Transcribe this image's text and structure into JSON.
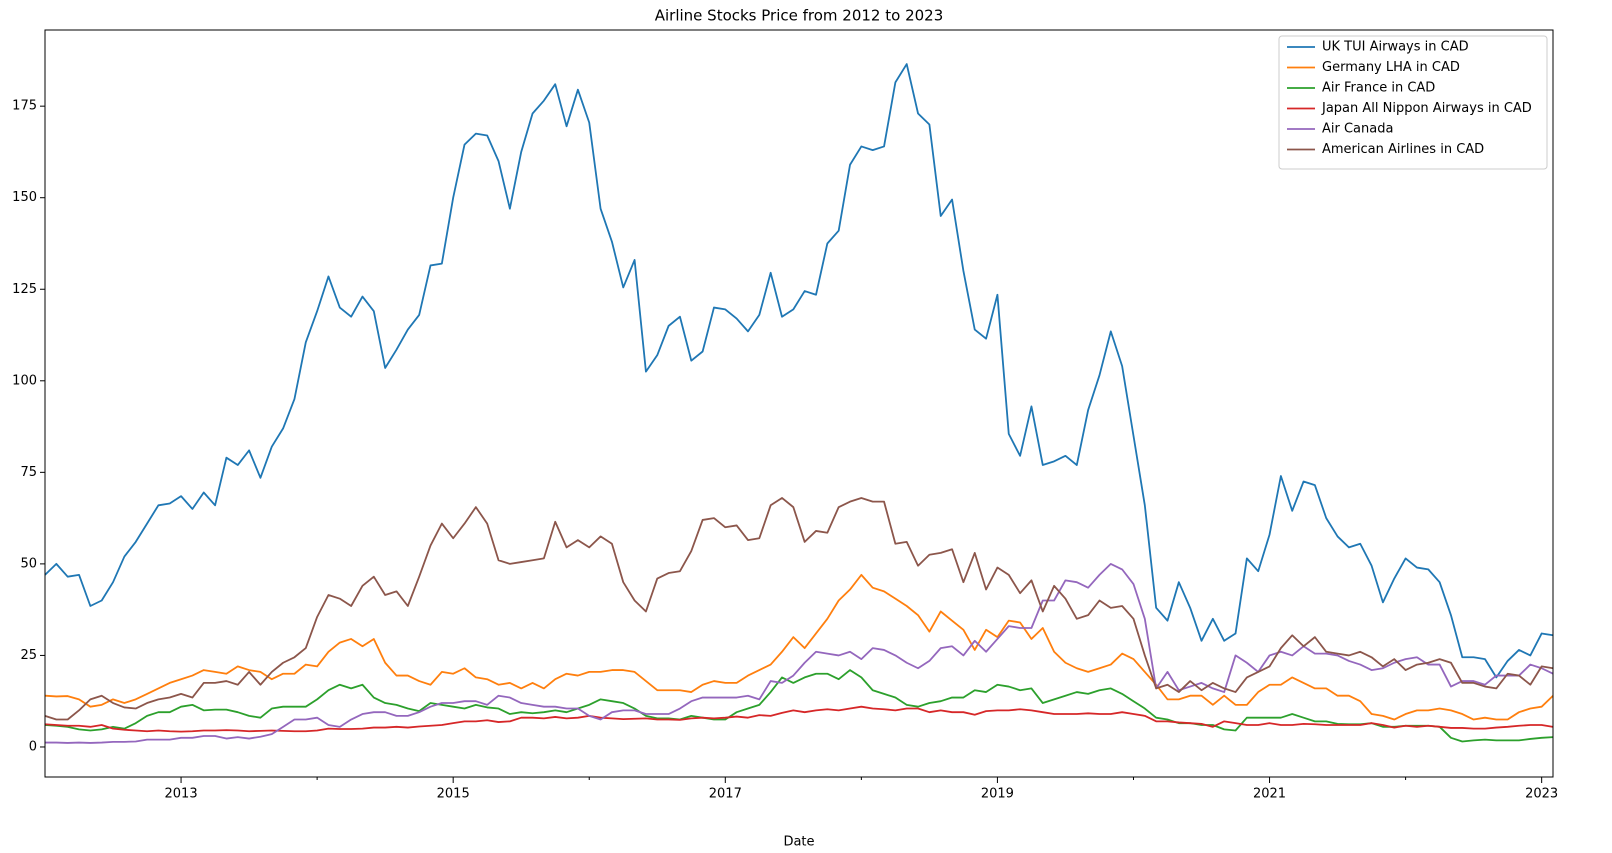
{
  "chart_data": {
    "type": "line",
    "title": "Airline Stocks Price from 2012 to 2023",
    "xlabel": "Date",
    "x": [
      "2012-01",
      "2012-02",
      "2012-03",
      "2012-04",
      "2012-05",
      "2012-06",
      "2012-07",
      "2012-08",
      "2012-09",
      "2012-10",
      "2012-11",
      "2012-12",
      "2013-01",
      "2013-02",
      "2013-03",
      "2013-04",
      "2013-05",
      "2013-06",
      "2013-07",
      "2013-08",
      "2013-09",
      "2013-10",
      "2013-11",
      "2013-12",
      "2014-01",
      "2014-02",
      "2014-03",
      "2014-04",
      "2014-05",
      "2014-06",
      "2014-07",
      "2014-08",
      "2014-09",
      "2014-10",
      "2014-11",
      "2014-12",
      "2015-01",
      "2015-02",
      "2015-03",
      "2015-04",
      "2015-05",
      "2015-06",
      "2015-07",
      "2015-08",
      "2015-09",
      "2015-10",
      "2015-11",
      "2015-12",
      "2016-01",
      "2016-02",
      "2016-03",
      "2016-04",
      "2016-05",
      "2016-06",
      "2016-07",
      "2016-08",
      "2016-09",
      "2016-10",
      "2016-11",
      "2016-12",
      "2017-01",
      "2017-02",
      "2017-03",
      "2017-04",
      "2017-05",
      "2017-06",
      "2017-07",
      "2017-08",
      "2017-09",
      "2017-10",
      "2017-11",
      "2017-12",
      "2018-01",
      "2018-02",
      "2018-03",
      "2018-04",
      "2018-05",
      "2018-06",
      "2018-07",
      "2018-08",
      "2018-09",
      "2018-10",
      "2018-11",
      "2018-12",
      "2019-01",
      "2019-02",
      "2019-03",
      "2019-04",
      "2019-05",
      "2019-06",
      "2019-07",
      "2019-08",
      "2019-09",
      "2019-10",
      "2019-11",
      "2019-12",
      "2020-01",
      "2020-02",
      "2020-03",
      "2020-04",
      "2020-05",
      "2020-06",
      "2020-07",
      "2020-08",
      "2020-09",
      "2020-10",
      "2020-11",
      "2020-12",
      "2021-01",
      "2021-02",
      "2021-03",
      "2021-04",
      "2021-05",
      "2021-06",
      "2021-07",
      "2021-08",
      "2021-09",
      "2021-10",
      "2021-11",
      "2021-12",
      "2022-01",
      "2022-02",
      "2022-03",
      "2022-04",
      "2022-05",
      "2022-06",
      "2022-07",
      "2022-08",
      "2022-09",
      "2022-10",
      "2022-11",
      "2022-12",
      "2023-01",
      "2023-02"
    ],
    "xlim": [
      "2012-01",
      "2023-02"
    ],
    "xticks": [
      2013,
      2015,
      2017,
      2019,
      2021,
      2023
    ],
    "xminorticks": [
      2014,
      2016,
      2018,
      2020,
      2022
    ],
    "ylim": [
      -8.2,
      195.8
    ],
    "yticks": [
      0,
      25,
      50,
      75,
      100,
      125,
      150,
      175
    ],
    "legend": "upper right",
    "series": [
      {
        "name": "UK TUI Airways in CAD",
        "color": "#1f77b4",
        "values": [
          47,
          50,
          46.5,
          47,
          38.5,
          40,
          45,
          52,
          56,
          61,
          66,
          66.5,
          68.5,
          65,
          69.5,
          66,
          79,
          77,
          81,
          73.5,
          82,
          87,
          95,
          110.5,
          119,
          128.5,
          120,
          117.5,
          123,
          119,
          103.5,
          108.5,
          114,
          118,
          131.5,
          132,
          150,
          164.5,
          167.5,
          167,
          160,
          147,
          162.5,
          173,
          176.5,
          181,
          169.5,
          179.5,
          170.5,
          147,
          138,
          125.5,
          133,
          102.5,
          107,
          115,
          117.5,
          105.5,
          108,
          120,
          119.5,
          117,
          113.5,
          118,
          129.5,
          117.5,
          119.5,
          124.5,
          123.5,
          137.5,
          141,
          159,
          164,
          163,
          164,
          181.5,
          186.5,
          173,
          170,
          145,
          149.5,
          130,
          114,
          111.5,
          123.5,
          85.5,
          79.5,
          93,
          77,
          78,
          79.5,
          77,
          92,
          101.5,
          113.5,
          104,
          85,
          66,
          38,
          34.5,
          45,
          38,
          29,
          35,
          29,
          31,
          51.5,
          48,
          58,
          74,
          64.5,
          72.5,
          71.5,
          62.5,
          57.5,
          54.5,
          55.5,
          49.5,
          39.5,
          46,
          51.5,
          49,
          48.5,
          45,
          36,
          24.5,
          24.5,
          24,
          19,
          23.5,
          26.5,
          25,
          31,
          30.5
        ]
      },
      {
        "name": "Germany LHA in CAD",
        "color": "#ff7f0e",
        "values": [
          14,
          13.8,
          13.9,
          13,
          11,
          11.5,
          13,
          12,
          13,
          14.5,
          16,
          17.5,
          18.5,
          19.5,
          21,
          20.5,
          20,
          22,
          21,
          20.5,
          18.5,
          20,
          20,
          22.5,
          22,
          26,
          28.5,
          29.5,
          27.5,
          29.5,
          23,
          19.5,
          19.5,
          18,
          17,
          20.5,
          20,
          21.5,
          19,
          18.5,
          17,
          17.5,
          16,
          17.5,
          16,
          18.5,
          20,
          19.5,
          20.5,
          20.5,
          21,
          21,
          20.5,
          18,
          15.5,
          15.5,
          15.5,
          15,
          17,
          18,
          17.5,
          17.5,
          19.5,
          21,
          22.5,
          26,
          30,
          27,
          31,
          35,
          40,
          43,
          47,
          43.5,
          42.5,
          40.5,
          38.5,
          36,
          31.5,
          37,
          34.5,
          32,
          26.5,
          32,
          30,
          34.5,
          34,
          29.5,
          32.5,
          26,
          23,
          21.5,
          20.5,
          21.5,
          22.5,
          25.5,
          24,
          20.5,
          17,
          13,
          13,
          14,
          14,
          11.5,
          14,
          11.5,
          11.5,
          15,
          17,
          17,
          19,
          17.5,
          16,
          16,
          14,
          14,
          12.5,
          9,
          8.5,
          7.5,
          9,
          10,
          10,
          10.5,
          10,
          9,
          7.5,
          8,
          7.5,
          7.5,
          9.5,
          10.5,
          11,
          14
        ]
      },
      {
        "name": "Air France in CAD",
        "color": "#2ca02c",
        "values": [
          6,
          5.8,
          5.5,
          4.8,
          4.5,
          4.8,
          5.5,
          5,
          6.5,
          8.5,
          9.5,
          9.5,
          11,
          11.5,
          10,
          10.2,
          10.2,
          9.5,
          8.5,
          8,
          10.5,
          11,
          11,
          11,
          13,
          15.5,
          17,
          16,
          17,
          13.5,
          12,
          11.5,
          10.5,
          9.8,
          12,
          11.5,
          11,
          10.5,
          11.5,
          10.8,
          10.5,
          9,
          9.5,
          9.2,
          9.5,
          10,
          9.5,
          10.5,
          11.5,
          13,
          12.5,
          12,
          10.5,
          8.5,
          7.8,
          7.8,
          7.5,
          8.5,
          8,
          7.5,
          7.5,
          9.5,
          10.5,
          11.5,
          15,
          19,
          17.5,
          19,
          20,
          20,
          18.5,
          21,
          19,
          15.5,
          14.5,
          13.5,
          11.5,
          11,
          12,
          12.5,
          13.5,
          13.5,
          15.5,
          15,
          17,
          16.5,
          15.5,
          16,
          12,
          13,
          14,
          15,
          14.5,
          15.5,
          16,
          14.5,
          12.5,
          10.5,
          8,
          7.5,
          6.5,
          6.5,
          6,
          6,
          4.8,
          4.5,
          8,
          8,
          8,
          8,
          9,
          8,
          7,
          7,
          6.3,
          6.2,
          6.2,
          6.5,
          5.5,
          5.5,
          5.8,
          5.8,
          5.8,
          5.5,
          2.5,
          1.5,
          1.8,
          2,
          1.8,
          1.8,
          1.8,
          2.2,
          2.5,
          2.7
        ]
      },
      {
        "name": "Japan All Nippon Airways in CAD",
        "color": "#d62728",
        "values": [
          6.2,
          6,
          5.8,
          5.8,
          5.5,
          6,
          5,
          4.7,
          4.5,
          4.3,
          4.5,
          4.3,
          4.2,
          4.3,
          4.5,
          4.5,
          4.6,
          4.5,
          4.3,
          4.4,
          4.5,
          4.4,
          4.3,
          4.3,
          4.5,
          5,
          4.9,
          4.9,
          5,
          5.3,
          5.3,
          5.5,
          5.3,
          5.6,
          5.8,
          6,
          6.5,
          7,
          7,
          7.3,
          6.8,
          7,
          8,
          8,
          7.8,
          8.2,
          7.8,
          8,
          8.5,
          8,
          7.8,
          7.6,
          7.7,
          7.8,
          7.5,
          7.5,
          7.4,
          7.8,
          8,
          7.8,
          8,
          8.3,
          8,
          8.7,
          8.5,
          9.3,
          10,
          9.5,
          10,
          10.3,
          10,
          10.5,
          11,
          10.5,
          10.3,
          10,
          10.5,
          10.5,
          9.5,
          10,
          9.5,
          9.5,
          8.8,
          9.8,
          10,
          10,
          10.3,
          10,
          9.5,
          9,
          9,
          9,
          9.2,
          9,
          9,
          9.5,
          9,
          8.5,
          7,
          7,
          6.7,
          6.5,
          6.3,
          5.5,
          7,
          6.5,
          6,
          6,
          6.5,
          6,
          6,
          6.3,
          6.2,
          6,
          6,
          6,
          6,
          6.5,
          6,
          5.3,
          5.8,
          5.5,
          5.8,
          5.5,
          5.2,
          5.2,
          5,
          5,
          5.3,
          5.5,
          5.8,
          6,
          6,
          5.5
        ]
      },
      {
        "name": "Air Canada",
        "color": "#9467bd",
        "values": [
          1.2,
          1.2,
          1.1,
          1.2,
          1.1,
          1.2,
          1.4,
          1.4,
          1.5,
          2,
          2,
          2,
          2.5,
          2.5,
          3,
          3,
          2.3,
          2.7,
          2.3,
          2.8,
          3.5,
          5.5,
          7.5,
          7.5,
          8,
          6,
          5.5,
          7.5,
          9,
          9.5,
          9.5,
          8.5,
          8.5,
          9.5,
          11,
          12,
          12,
          12.5,
          12.5,
          11.5,
          14,
          13.5,
          12,
          11.5,
          11,
          11,
          10.5,
          10.5,
          8.5,
          7.5,
          9.5,
          10,
          10,
          9,
          9,
          9,
          10.5,
          12.5,
          13.5,
          13.5,
          13.5,
          13.5,
          14,
          13,
          18,
          17.5,
          19.5,
          23,
          26,
          25.5,
          25,
          26,
          24,
          27,
          26.5,
          25,
          23,
          21.5,
          23.5,
          27,
          27.5,
          25,
          29,
          26,
          29.5,
          33,
          32.5,
          32.5,
          40,
          40,
          45.5,
          45,
          43.5,
          47,
          50,
          48.5,
          44.5,
          35,
          16,
          20.5,
          15.5,
          16.5,
          17.5,
          16,
          15,
          25,
          23,
          20.5,
          25,
          26,
          25,
          27.5,
          25.5,
          25.5,
          25,
          23.5,
          22.5,
          21,
          21.5,
          23,
          24,
          24.5,
          22.5,
          22.5,
          16.5,
          18,
          18,
          17,
          19.5,
          19.5,
          19.5,
          22.5,
          21.5,
          20
        ]
      },
      {
        "name": "American Airlines in CAD",
        "color": "#8c564b",
        "values": [
          8.5,
          7.5,
          7.5,
          10,
          13,
          14,
          12,
          10.8,
          10.5,
          12,
          13,
          13.5,
          14.5,
          13.5,
          17.5,
          17.5,
          18,
          17,
          20.5,
          17,
          20.5,
          23,
          24.5,
          27,
          35.5,
          41.5,
          40.5,
          38.5,
          44,
          46.5,
          41.5,
          42.5,
          38.5,
          46.5,
          55,
          61,
          57,
          61,
          65.5,
          61,
          51,
          50,
          50.5,
          51,
          51.5,
          61.5,
          54.5,
          56.5,
          54.5,
          57.5,
          55.5,
          45,
          40,
          37,
          46,
          47.5,
          48,
          53.5,
          62,
          62.5,
          60,
          60.5,
          56.5,
          57,
          66,
          68,
          65.5,
          56,
          59,
          58.5,
          65.5,
          67,
          68,
          67,
          67,
          55.5,
          56,
          49.5,
          52.5,
          53,
          54,
          45,
          53,
          43,
          49,
          47,
          42,
          45.5,
          37,
          44,
          40.5,
          35,
          36,
          40,
          38,
          38.5,
          35,
          25,
          16,
          17,
          15,
          18,
          15.5,
          17.5,
          16,
          15,
          19,
          20.5,
          22,
          27,
          30.5,
          27.5,
          30,
          26,
          25.5,
          25,
          26,
          24.5,
          22,
          24,
          21,
          22.5,
          23,
          24,
          23,
          17.5,
          17.5,
          16.5,
          16,
          20,
          19.5,
          17,
          22,
          21.5
        ]
      }
    ]
  }
}
